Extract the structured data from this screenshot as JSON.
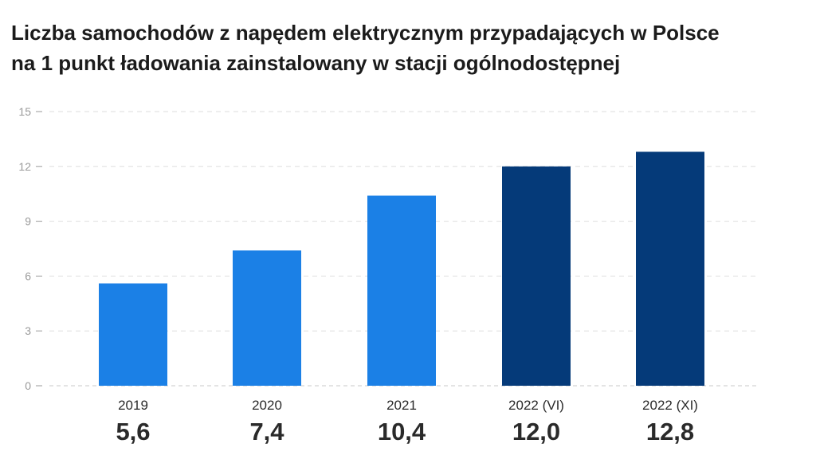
{
  "title_lines": [
    "Liczba samochodów z napędem elektrycznym przypadających w Polsce",
    "na 1 punkt ładowania zainstalowany w stacji ogólnodostępnej"
  ],
  "chart_data": {
    "type": "bar",
    "title": "Liczba samochodów z napędem elektrycznym przypadających w Polsce na 1 punkt ładowania zainstalowany w stacji ogólnodostępnej",
    "categories": [
      "2019",
      "2020",
      "2021",
      "2022 (VI)",
      "2022 (XI)"
    ],
    "values": [
      5.6,
      7.4,
      10.4,
      12.0,
      12.8
    ],
    "value_labels": [
      "5,6",
      "7,4",
      "10,4",
      "12,0",
      "12,8"
    ],
    "ylim": [
      0,
      15
    ],
    "yticks": [
      0,
      3,
      6,
      9,
      12,
      15
    ],
    "ytick_labels": [
      "0",
      "3",
      "6",
      "9",
      "12",
      "15"
    ],
    "grid": true,
    "legend": "none",
    "colors": [
      "#1b80e6",
      "#1b80e6",
      "#1b80e6",
      "#053a79",
      "#053a79"
    ]
  }
}
